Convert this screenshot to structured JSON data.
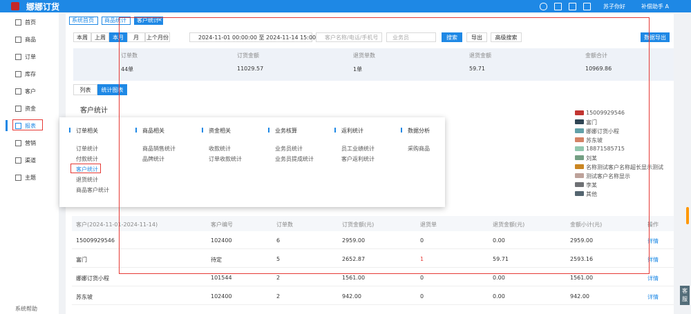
{
  "header": {
    "logo": "娜娜订货",
    "user": "苏子你好",
    "account": "补偿助手 A"
  },
  "sidebar": {
    "items": [
      "首页",
      "商品",
      "订单",
      "库存",
      "客户",
      "资金",
      "报表",
      "营销",
      "渠道",
      "主题"
    ],
    "active": 6,
    "footer": "系统帮助"
  },
  "tabs": [
    {
      "label": "系统首页"
    },
    {
      "label": "商品统计"
    },
    {
      "label": "客户统计",
      "close": "×"
    }
  ],
  "filters": {
    "periods": [
      "本周",
      "上周",
      "本月",
      "月",
      "上个月份"
    ],
    "active_period": 2,
    "date_range": "2024-11-01 00:00:00 至 2024-11-14 15:00:35",
    "customer_placeholder": "客户名称/电话/手机号",
    "salesman_placeholder": "业务员",
    "search": "搜索",
    "export": "导出",
    "advanced": "高级搜索",
    "data_export": "数据导出"
  },
  "summary": {
    "headers": [
      "订单数",
      "订货金额",
      "退货单数",
      "退货金额",
      "金额合计"
    ],
    "values": [
      "44单",
      "11029.57",
      "1单",
      "59.71",
      "10969.86"
    ]
  },
  "view_toggle": [
    "列表",
    "统计图表"
  ],
  "section_title": "客户统计",
  "menu": {
    "columns": [
      {
        "title": "订单相关",
        "items": [
          "订单统计",
          "付款统计",
          "客户统计",
          "退货统计",
          "商品客户统计"
        ]
      },
      {
        "title": "商品相关",
        "items": [
          "商品销售统计",
          "品牌统计"
        ]
      },
      {
        "title": "资金相关",
        "items": [
          "收款统计",
          "订单收款统计"
        ]
      },
      {
        "title": "业务核算",
        "items": [
          "业务员统计",
          "业务员提成统计"
        ]
      },
      {
        "title": "返利统计",
        "items": [
          "员工业绩统计",
          "客户返利统计"
        ]
      },
      {
        "title": "数据分析",
        "items": [
          "采购商品"
        ]
      }
    ],
    "highlighted": "0.2"
  },
  "legend": [
    {
      "name": "15009929546",
      "color": "#c23531"
    },
    {
      "name": "富门",
      "color": "#2f4554"
    },
    {
      "name": "娜娜订货小程",
      "color": "#61a0a8"
    },
    {
      "name": "苏东坡",
      "color": "#d48265"
    },
    {
      "name": "18871585715",
      "color": "#91c7ae"
    },
    {
      "name": "刘某",
      "color": "#749f83"
    },
    {
      "name": "名称测试客户名称超长显示测试",
      "color": "#ca8622"
    },
    {
      "name": "测试客户名称显示",
      "color": "#bda29a"
    },
    {
      "name": "李某",
      "color": "#6e7074"
    },
    {
      "name": "其他",
      "color": "#546570"
    }
  ],
  "table": {
    "headers": [
      "客户(2024-11-01-2024-11-14)",
      "客户编号",
      "订单数",
      "订货金额(元)",
      "退货单",
      "退货金额(元)",
      "金额小计(元)",
      "操作"
    ],
    "rows": [
      [
        "15009929546",
        "102400",
        "6",
        "2959.00",
        "0",
        "0.00",
        "2959.00",
        "详情"
      ],
      [
        "富门",
        "待定",
        "5",
        "2652.87",
        "1",
        "59.71",
        "2593.16",
        "详情"
      ],
      [
        "娜娜订货小程",
        "101544",
        "2",
        "1561.00",
        "0",
        "0.00",
        "1561.00",
        "详情"
      ],
      [
        "苏东坡",
        "102400",
        "2",
        "942.00",
        "0",
        "0.00",
        "942.00",
        "详情"
      ]
    ]
  },
  "service": "客服"
}
